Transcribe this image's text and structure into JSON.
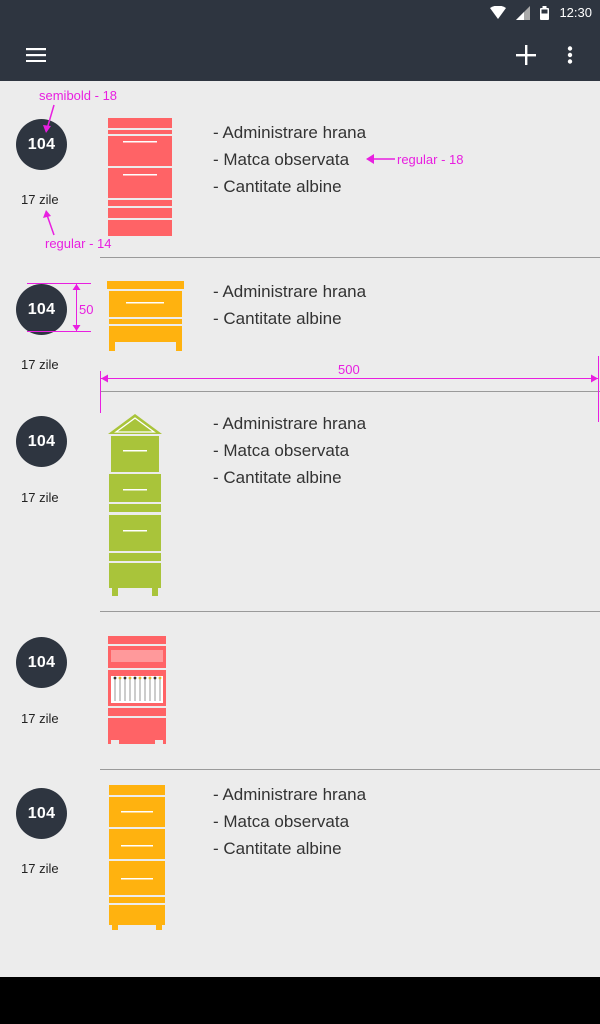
{
  "statusbar": {
    "time": "12:30"
  },
  "toolbar": {
    "menu_icon": "menu-icon",
    "add_icon": "plus-icon",
    "overflow_icon": "more-vert-icon"
  },
  "colors": {
    "red": "#ff6366",
    "orange": "#ffb20f",
    "green": "#a9c43a",
    "dark": "#2e3540",
    "annotation": "#e81fe0"
  },
  "hives": [
    {
      "number": "104",
      "days": "17 zile",
      "color": "red",
      "observations": [
        "- Administrare hrana",
        "- Matca observata",
        "- Cantitate albine"
      ]
    },
    {
      "number": "104",
      "days": "17 zile",
      "color": "orange",
      "observations": [
        "- Administrare hrana",
        "- Cantitate albine"
      ]
    },
    {
      "number": "104",
      "days": "17 zile",
      "color": "green",
      "observations": [
        "- Administrare hrana",
        "- Matca observata",
        "- Cantitate albine"
      ]
    },
    {
      "number": "104",
      "days": "17 zile",
      "color": "red",
      "observations": []
    },
    {
      "number": "104",
      "days": "17 zile",
      "color": "orange",
      "observations": [
        "- Administrare hrana",
        "- Matca observata",
        "- Cantitate albine"
      ]
    }
  ],
  "annotations": {
    "badge_font": "semibold - 18",
    "days_font": "regular - 14",
    "obs_font": "regular - 18",
    "badge_size": "50",
    "content_width": "500"
  }
}
